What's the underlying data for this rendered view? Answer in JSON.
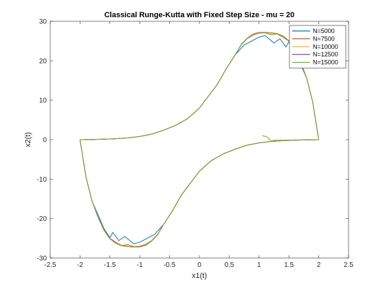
{
  "chart_data": {
    "type": "line",
    "title": "Classical Runge-Kutta with Fixed Step Size - mu = 20",
    "xlabel": "x1(t)",
    "ylabel": "x2(t)",
    "xlim": [
      -2.5,
      2.5
    ],
    "ylim": [
      -30,
      30
    ],
    "xticks": [
      -2.5,
      -2,
      -1.5,
      -1,
      -0.5,
      0,
      0.5,
      1,
      1.5,
      2,
      2.5
    ],
    "xtick_labels": [
      "-2.5",
      "-2",
      "-1.5",
      "-1",
      "-0.5",
      "0",
      "0.5",
      "1",
      "1.5",
      "2",
      "2.5"
    ],
    "yticks": [
      -30,
      -20,
      -10,
      0,
      10,
      20,
      30
    ],
    "ytick_labels": [
      "-30",
      "-20",
      "-10",
      "0",
      "10",
      "20",
      "30"
    ],
    "grid": false,
    "legend_position": "top-right",
    "series": [
      {
        "name": "N=5000",
        "color": "#0072BD",
        "x": [
          2.0,
          1.9,
          1.8,
          1.7,
          1.6,
          1.5,
          1.45,
          1.35,
          1.25,
          1.1,
          1.0,
          0.9,
          0.75,
          0.6,
          0.45,
          0.3,
          0.15,
          0.0,
          -0.2,
          -0.4,
          -0.6,
          -0.8,
          -1.0,
          -1.2,
          -1.4,
          -1.6,
          -1.8,
          -1.92,
          -2.0,
          -1.9,
          -1.8,
          -1.7,
          -1.6,
          -1.5,
          -1.45,
          -1.35,
          -1.25,
          -1.1,
          -1.0,
          -0.9,
          -0.75,
          -0.6,
          -0.45,
          -0.3,
          -0.15,
          0.0,
          0.2,
          0.4,
          0.6,
          0.8,
          1.0,
          1.2,
          1.4,
          1.6,
          1.8,
          1.92,
          2.0
        ],
        "y": [
          0.0,
          9.5,
          15.5,
          19.0,
          22.5,
          24.8,
          23.5,
          25.6,
          24.5,
          26.4,
          26.0,
          25.2,
          24.0,
          21.5,
          18.0,
          14.0,
          11.0,
          8.0,
          5.3,
          3.6,
          2.4,
          1.4,
          0.8,
          0.45,
          0.25,
          0.12,
          0.05,
          0.02,
          0.0,
          -9.5,
          -15.5,
          -19.0,
          -22.5,
          -24.8,
          -23.5,
          -25.6,
          -24.5,
          -26.4,
          -26.0,
          -25.2,
          -24.0,
          -21.5,
          -18.0,
          -14.0,
          -11.0,
          -8.0,
          -5.3,
          -3.6,
          -2.4,
          -1.4,
          -0.8,
          -0.45,
          -0.25,
          -0.12,
          -0.05,
          -0.02,
          0.0
        ]
      },
      {
        "name": "N=7500",
        "color": "#D95319",
        "x": [
          2.0,
          1.9,
          1.8,
          1.7,
          1.6,
          1.5,
          1.4,
          1.3,
          1.2,
          1.1,
          1.0,
          0.9,
          0.8,
          0.7,
          0.6,
          0.45,
          0.3,
          0.15,
          0.0,
          -0.2,
          -0.4,
          -0.6,
          -0.8,
          -1.0,
          -1.2,
          -1.4,
          -1.6,
          -1.8,
          -1.92,
          -2.0,
          -1.9,
          -1.8,
          -1.7,
          -1.6,
          -1.5,
          -1.4,
          -1.3,
          -1.2,
          -1.1,
          -1.0,
          -0.9,
          -0.8,
          -0.7,
          -0.6,
          -0.45,
          -0.3,
          -0.15,
          0.0,
          0.2,
          0.4,
          0.6,
          0.8,
          1.0,
          1.2,
          1.4,
          1.6,
          1.8,
          1.92,
          2.0
        ],
        "y": [
          0.0,
          9.5,
          15.5,
          19.5,
          22.8,
          25.0,
          26.0,
          26.8,
          26.6,
          27.1,
          27.0,
          26.5,
          25.6,
          24.0,
          21.5,
          18.0,
          14.0,
          11.0,
          8.0,
          5.3,
          3.6,
          2.4,
          1.4,
          0.8,
          0.45,
          0.25,
          0.12,
          0.05,
          0.02,
          0.0,
          -9.5,
          -15.5,
          -19.5,
          -22.8,
          -25.0,
          -26.0,
          -26.8,
          -26.6,
          -27.1,
          -27.0,
          -26.5,
          -25.6,
          -24.0,
          -21.5,
          -18.0,
          -14.0,
          -11.0,
          -8.0,
          -5.3,
          -3.6,
          -2.4,
          -1.4,
          -0.8,
          -0.45,
          -0.25,
          -0.12,
          -0.05,
          -0.02,
          0.0
        ]
      },
      {
        "name": "N=10000",
        "color": "#EDB120",
        "x": [
          2.0,
          1.9,
          1.8,
          1.7,
          1.6,
          1.5,
          1.4,
          1.3,
          1.2,
          1.1,
          1.0,
          0.9,
          0.8,
          0.7,
          0.6,
          0.45,
          0.3,
          0.15,
          0.0,
          -0.2,
          -0.4,
          -0.6,
          -0.8,
          -1.0,
          -1.2,
          -1.4,
          -1.6,
          -1.8,
          -1.92,
          -2.0,
          -1.9,
          -1.8,
          -1.7,
          -1.6,
          -1.5,
          -1.4,
          -1.3,
          -1.2,
          -1.1,
          -1.0,
          -0.9,
          -0.8,
          -0.7,
          -0.6,
          -0.45,
          -0.3,
          -0.15,
          0.0,
          0.2,
          0.4,
          0.6,
          0.8,
          1.0,
          1.2,
          1.4,
          1.6,
          1.8,
          1.92,
          2.0
        ],
        "y": [
          0.0,
          9.5,
          15.5,
          19.6,
          22.9,
          25.1,
          26.3,
          26.8,
          27.0,
          27.2,
          27.2,
          26.7,
          25.7,
          24.1,
          21.5,
          18.0,
          14.0,
          11.0,
          8.0,
          5.3,
          3.6,
          2.4,
          1.4,
          0.8,
          0.45,
          0.25,
          0.12,
          0.05,
          0.02,
          0.0,
          -9.5,
          -15.5,
          -19.6,
          -22.9,
          -25.1,
          -26.3,
          -26.8,
          -27.0,
          -27.2,
          -27.2,
          -26.7,
          -25.7,
          -24.1,
          -21.5,
          -18.0,
          -14.0,
          -11.0,
          -8.0,
          -5.3,
          -3.6,
          -2.4,
          -1.4,
          -0.8,
          -0.45,
          -0.25,
          -0.12,
          -0.05,
          -0.02,
          0.0
        ]
      },
      {
        "name": "N=12500",
        "color": "#7E2F8E",
        "x": [
          2.0,
          1.9,
          1.8,
          1.7,
          1.6,
          1.5,
          1.4,
          1.3,
          1.2,
          1.1,
          1.0,
          0.9,
          0.8,
          0.7,
          0.6,
          0.45,
          0.3,
          0.15,
          0.0,
          -0.2,
          -0.4,
          -0.6,
          -0.8,
          -1.0,
          -1.2,
          -1.4,
          -1.6,
          -1.8,
          -1.92,
          -2.0,
          -1.9,
          -1.8,
          -1.7,
          -1.6,
          -1.5,
          -1.4,
          -1.3,
          -1.2,
          -1.1,
          -1.0,
          -0.9,
          -0.8,
          -0.7,
          -0.6,
          -0.45,
          -0.3,
          -0.15,
          0.0,
          0.2,
          0.4,
          0.6,
          0.8,
          1.0,
          1.2,
          1.4,
          1.6,
          1.8,
          1.92,
          2.0
        ],
        "y": [
          0.0,
          9.5,
          15.5,
          19.6,
          22.9,
          25.1,
          26.3,
          26.9,
          27.1,
          27.2,
          27.2,
          26.8,
          25.7,
          24.1,
          21.5,
          18.0,
          14.0,
          11.0,
          8.0,
          5.3,
          3.6,
          2.4,
          1.4,
          0.8,
          0.45,
          0.25,
          0.12,
          0.05,
          0.02,
          0.0,
          -9.5,
          -15.5,
          -19.6,
          -22.9,
          -25.1,
          -26.3,
          -26.9,
          -27.1,
          -27.2,
          -27.2,
          -26.8,
          -25.7,
          -24.1,
          -21.5,
          -18.0,
          -14.0,
          -11.0,
          -8.0,
          -5.3,
          -3.6,
          -2.4,
          -1.4,
          -0.8,
          -0.45,
          -0.25,
          -0.12,
          -0.05,
          -0.02,
          0.0
        ]
      },
      {
        "name": "N=15000",
        "color": "#77AC30",
        "x": [
          1.05,
          1.12,
          1.16,
          1.17,
          1.2,
          1.35,
          1.5,
          1.7,
          1.92,
          2.0,
          1.9,
          1.8,
          1.7,
          1.6,
          1.5,
          1.4,
          1.3,
          1.2,
          1.1,
          1.0,
          0.9,
          0.8,
          0.7,
          0.6,
          0.45,
          0.3,
          0.15,
          0.0,
          -0.2,
          -0.4,
          -0.6,
          -0.8,
          -1.0,
          -1.2,
          -1.4,
          -1.6,
          -1.8,
          -1.92,
          -2.0,
          -1.9,
          -1.8,
          -1.7,
          -1.6,
          -1.5,
          -1.4,
          -1.3,
          -1.2,
          -1.1,
          -1.0,
          -0.9,
          -0.8,
          -0.7,
          -0.6,
          -0.45,
          -0.3,
          -0.15,
          0.0,
          0.2,
          0.4,
          0.6,
          0.8,
          1.0,
          1.2,
          1.4,
          1.6,
          1.8,
          1.92,
          2.0
        ],
        "y": [
          1.0,
          0.8,
          0.4,
          0.0,
          -0.2,
          -0.12,
          -0.08,
          -0.05,
          -0.02,
          0.0,
          9.5,
          15.5,
          19.6,
          22.9,
          25.1,
          26.3,
          26.9,
          27.1,
          27.2,
          27.2,
          26.8,
          25.7,
          24.1,
          21.5,
          18.0,
          14.0,
          11.0,
          8.0,
          5.3,
          3.6,
          2.4,
          1.4,
          0.8,
          0.45,
          0.25,
          0.12,
          0.05,
          0.02,
          0.0,
          -9.5,
          -15.5,
          -19.6,
          -22.9,
          -25.1,
          -26.3,
          -26.9,
          -27.1,
          -27.2,
          -27.2,
          -26.8,
          -25.7,
          -24.1,
          -21.5,
          -18.0,
          -14.0,
          -11.0,
          -8.0,
          -5.3,
          -3.6,
          -2.4,
          -1.4,
          -0.8,
          -0.45,
          -0.25,
          -0.12,
          -0.05,
          -0.02,
          0.0
        ]
      }
    ]
  }
}
